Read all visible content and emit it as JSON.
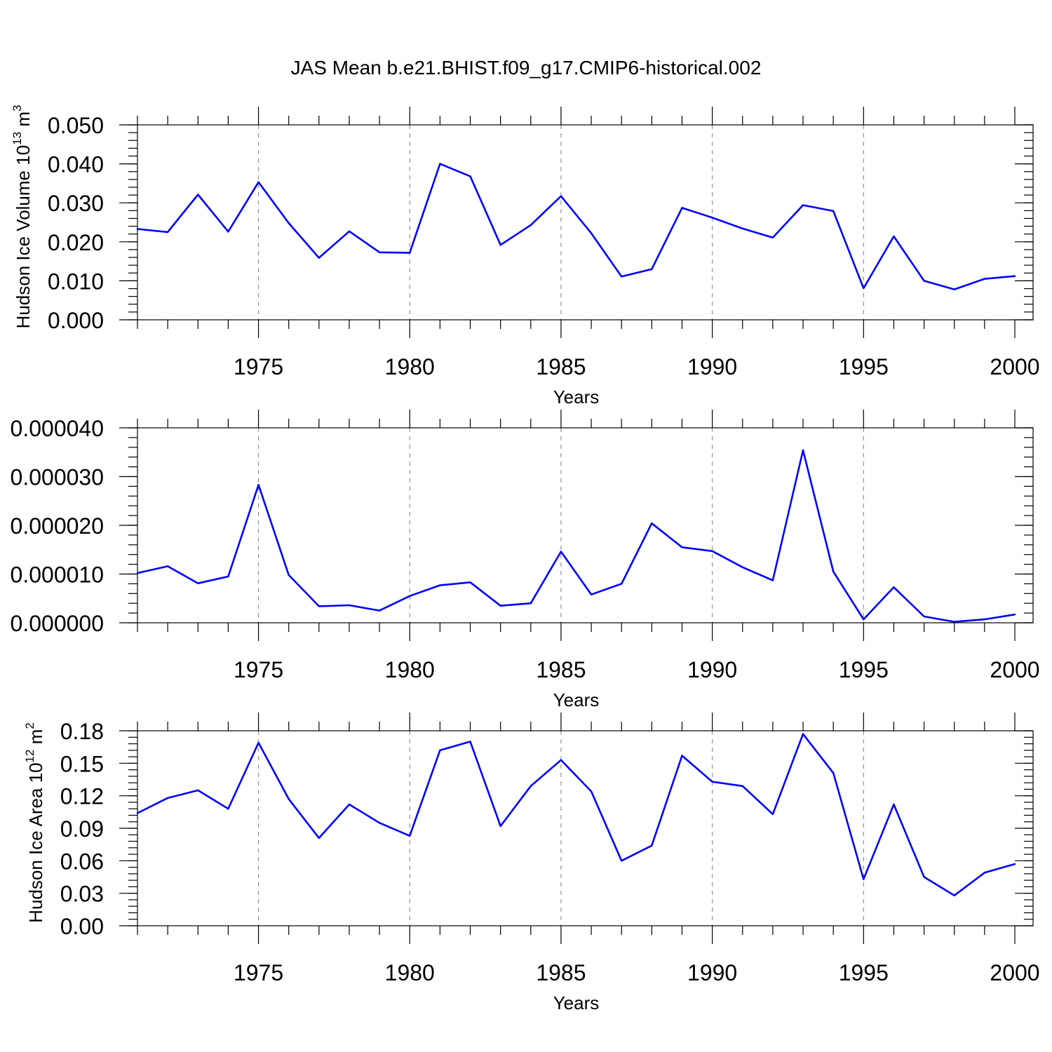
{
  "figure": {
    "title": "JAS Mean b.e21.BHIST.f09_g17.CMIP6-historical.002"
  },
  "chart_data": [
    {
      "type": "line",
      "ylabel": "Hudson Ice Volume",
      "ylabel_power": "10",
      "ylabel_exponent": "13",
      "ylabel_unit": "m",
      "ylabel_unit_exponent": "3",
      "xlabel": "Years",
      "xlim": [
        1971,
        2000
      ],
      "ylim": [
        0,
        0.05
      ],
      "x_ticks": [
        1975,
        1980,
        1985,
        1990,
        1995,
        2000
      ],
      "y_ticks": [
        0,
        0.01,
        0.02,
        0.03,
        0.04,
        0.05
      ],
      "y_tick_labels": [
        "0.000",
        "0.010",
        "0.020",
        "0.030",
        "0.040",
        "0.050"
      ],
      "y_minor_step": 0.002,
      "grid": "x-major dashed",
      "color": "#0000ff",
      "x": [
        1971,
        1972,
        1973,
        1974,
        1975,
        1976,
        1977,
        1978,
        1979,
        1980,
        1981,
        1982,
        1983,
        1984,
        1985,
        1986,
        1987,
        1988,
        1989,
        1990,
        1991,
        1992,
        1993,
        1994,
        1995,
        1996,
        1997,
        1998,
        1999,
        2000
      ],
      "values": [
        0.0233,
        0.0225,
        0.0321,
        0.0226,
        0.0353,
        0.0248,
        0.0159,
        0.0227,
        0.0173,
        0.0172,
        0.04,
        0.0368,
        0.0192,
        0.0243,
        0.0317,
        0.0222,
        0.0111,
        0.013,
        0.0287,
        0.0262,
        0.0234,
        0.0211,
        0.0294,
        0.0279,
        0.0081,
        0.0214,
        0.01,
        0.0078,
        0.0105,
        0.0112
      ]
    },
    {
      "type": "line",
      "ylabel": "",
      "xlabel": "Years",
      "xlim": [
        1971,
        2000
      ],
      "ylim": [
        0,
        4e-05
      ],
      "x_ticks": [
        1975,
        1980,
        1985,
        1990,
        1995,
        2000
      ],
      "y_ticks": [
        0,
        1e-05,
        2e-05,
        3e-05,
        4e-05
      ],
      "y_tick_labels": [
        "0.000000",
        "0.000010",
        "0.000020",
        "0.000030",
        "0.000040"
      ],
      "y_minor_step": 2e-06,
      "grid": "x-major dashed",
      "color": "#0000ff",
      "x": [
        1971,
        1972,
        1973,
        1974,
        1975,
        1976,
        1977,
        1978,
        1979,
        1980,
        1981,
        1982,
        1983,
        1984,
        1985,
        1986,
        1987,
        1988,
        1989,
        1990,
        1991,
        1992,
        1993,
        1994,
        1995,
        1996,
        1997,
        1998,
        1999,
        2000
      ],
      "values": [
        1.02e-05,
        1.16e-05,
        8.1e-06,
        9.5e-06,
        2.83e-05,
        9.8e-06,
        3.4e-06,
        3.6e-06,
        2.5e-06,
        5.5e-06,
        7.7e-06,
        8.3e-06,
        3.5e-06,
        4e-06,
        1.46e-05,
        5.8e-06,
        8e-06,
        2.04e-05,
        1.55e-05,
        1.47e-05,
        1.14e-05,
        8.7e-06,
        3.54e-05,
        1.05e-05,
        7e-07,
        7.3e-06,
        1.3e-06,
        2e-07,
        7e-07,
        1.7e-06
      ]
    },
    {
      "type": "line",
      "ylabel": "Hudson Ice Area",
      "ylabel_power": "10",
      "ylabel_exponent": "12",
      "ylabel_unit": "m",
      "ylabel_unit_exponent": "2",
      "xlabel": "Years",
      "xlim": [
        1971,
        2000
      ],
      "ylim": [
        0,
        0.18
      ],
      "x_ticks": [
        1975,
        1980,
        1985,
        1990,
        1995,
        2000
      ],
      "y_ticks": [
        0,
        0.03,
        0.06,
        0.09,
        0.12,
        0.15,
        0.18
      ],
      "y_tick_labels": [
        "0.00",
        "0.03",
        "0.06",
        "0.09",
        "0.12",
        "0.15",
        "0.18"
      ],
      "y_minor_step": 0.006,
      "grid": "x-major dashed",
      "color": "#0000ff",
      "x": [
        1971,
        1972,
        1973,
        1974,
        1975,
        1976,
        1977,
        1978,
        1979,
        1980,
        1981,
        1982,
        1983,
        1984,
        1985,
        1986,
        1987,
        1988,
        1989,
        1990,
        1991,
        1992,
        1993,
        1994,
        1995,
        1996,
        1997,
        1998,
        1999,
        2000
      ],
      "values": [
        0.104,
        0.118,
        0.125,
        0.108,
        0.169,
        0.117,
        0.081,
        0.112,
        0.095,
        0.083,
        0.162,
        0.17,
        0.092,
        0.129,
        0.153,
        0.124,
        0.06,
        0.074,
        0.157,
        0.133,
        0.129,
        0.103,
        0.177,
        0.141,
        0.043,
        0.112,
        0.045,
        0.028,
        0.049,
        0.057
      ]
    }
  ]
}
